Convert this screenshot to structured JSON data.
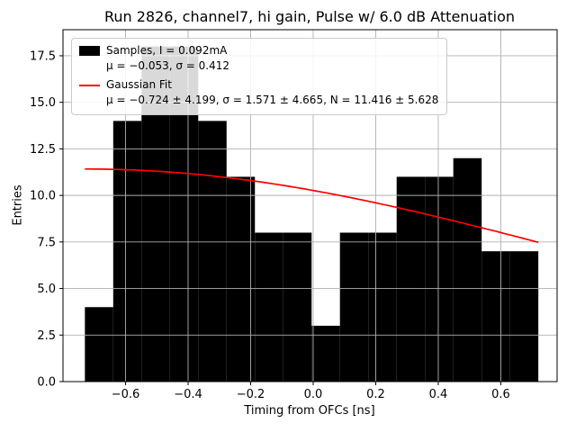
{
  "chart_data": {
    "type": "histogram",
    "title": "Run 2826, channel7, hi gain, Pulse w/ 6.0 dB Attenuation",
    "xlabel": "Timing from OFCs [ns]",
    "ylabel": "Entries",
    "xlim": [
      -0.8,
      0.78
    ],
    "ylim": [
      0,
      18.9
    ],
    "grid": true,
    "legend_position": "upper left",
    "xticks": [
      {
        "v": -0.6,
        "label": "−0.6"
      },
      {
        "v": -0.4,
        "label": "−0.4"
      },
      {
        "v": -0.2,
        "label": "−0.2"
      },
      {
        "v": 0.0,
        "label": "0.0"
      },
      {
        "v": 0.2,
        "label": "0.2"
      },
      {
        "v": 0.4,
        "label": "0.4"
      },
      {
        "v": 0.6,
        "label": "0.6"
      }
    ],
    "yticks": [
      {
        "v": 0.0,
        "label": "0.0"
      },
      {
        "v": 2.5,
        "label": "2.5"
      },
      {
        "v": 5.0,
        "label": "5.0"
      },
      {
        "v": 7.5,
        "label": "7.5"
      },
      {
        "v": 10.0,
        "label": "10.0"
      },
      {
        "v": 12.5,
        "label": "12.5"
      },
      {
        "v": 15.0,
        "label": "15.0"
      },
      {
        "v": 17.5,
        "label": "17.5"
      }
    ],
    "histogram": {
      "edges": [
        -0.73,
        -0.6394,
        -0.5488,
        -0.4581,
        -0.3675,
        -0.2769,
        -0.1863,
        -0.0956,
        -0.005,
        0.0856,
        0.1763,
        0.2669,
        0.3575,
        0.4481,
        0.5388,
        0.6294,
        0.72
      ],
      "counts": [
        4,
        14,
        18,
        18,
        14,
        11,
        8,
        8,
        3,
        8,
        8,
        11,
        11,
        12,
        7,
        7
      ]
    },
    "fit": {
      "type": "gaussian",
      "mu": -0.724,
      "sigma": 1.571,
      "N": 11.416,
      "xmin": -0.73,
      "xmax": 0.72
    },
    "legend": {
      "samples": {
        "label": "Samples, I = 0.092mA",
        "stats": "μ = −0.053, σ = 0.412"
      },
      "fit": {
        "label": "Gaussian Fit",
        "stats": "μ = −0.724 ± 4.199, σ = 1.571 ± 4.665, N = 11.416 ± 5.628"
      }
    },
    "colors": {
      "bar": "#000000",
      "fit": "#ff0000",
      "grid": "#b0b0b0",
      "spine": "#000000"
    }
  }
}
